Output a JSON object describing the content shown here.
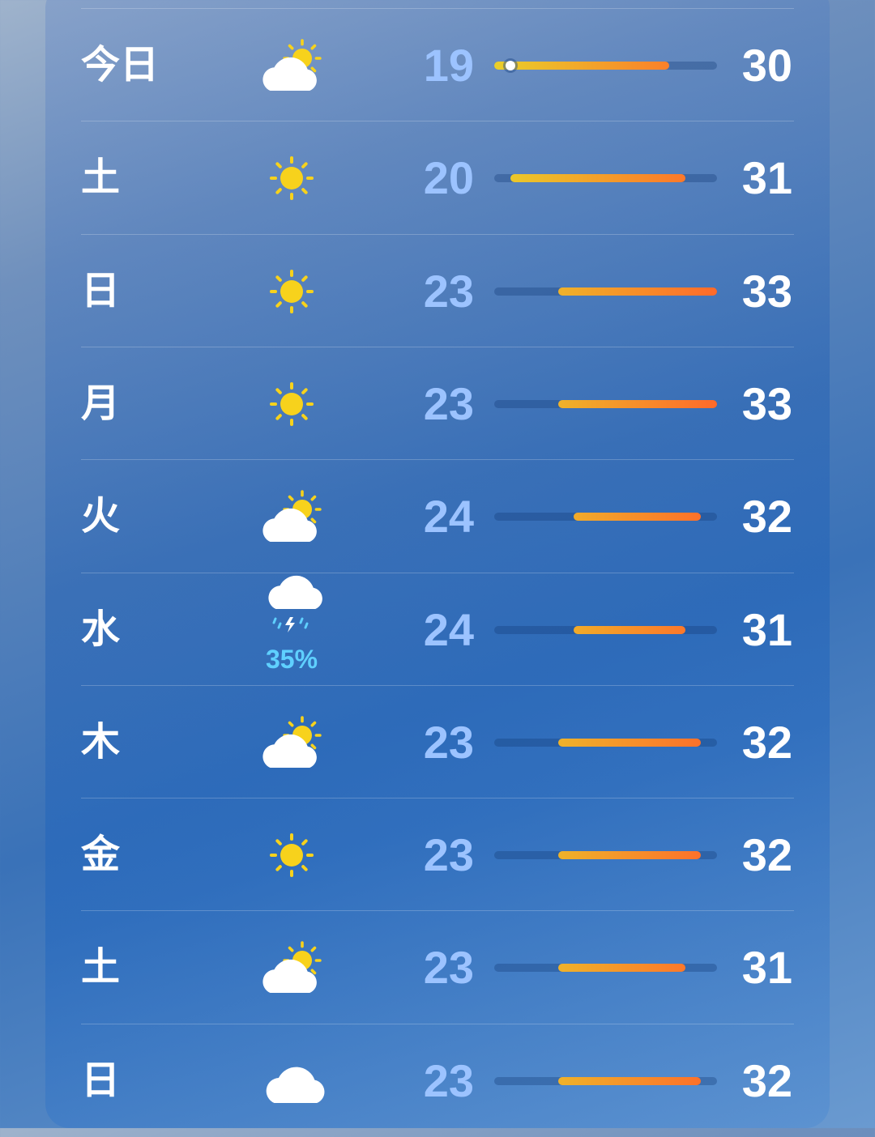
{
  "forecast": {
    "range": {
      "min": 19,
      "max": 33
    },
    "current_temp": 20,
    "days": [
      {
        "day": "今日",
        "icon": "partly-cloudy-icon",
        "low": "19",
        "high": "30"
      },
      {
        "day": "土",
        "icon": "sun-icon",
        "low": "20",
        "high": "31"
      },
      {
        "day": "日",
        "icon": "sun-icon",
        "low": "23",
        "high": "33"
      },
      {
        "day": "月",
        "icon": "sun-icon",
        "low": "23",
        "high": "33"
      },
      {
        "day": "火",
        "icon": "partly-cloudy-icon",
        "low": "24",
        "high": "32"
      },
      {
        "day": "水",
        "icon": "thunderstorm-icon",
        "precip": "35%",
        "low": "24",
        "high": "31"
      },
      {
        "day": "木",
        "icon": "partly-cloudy-icon",
        "low": "23",
        "high": "32"
      },
      {
        "day": "金",
        "icon": "sun-icon",
        "low": "23",
        "high": "32"
      },
      {
        "day": "土",
        "icon": "partly-cloudy-icon",
        "low": "23",
        "high": "31"
      },
      {
        "day": "日",
        "icon": "cloud-icon",
        "low": "23",
        "high": "32"
      }
    ]
  },
  "colors": {
    "cool": "#e9cf2a",
    "warm": "#ff6a2a",
    "precip": "#5fd0ff"
  }
}
